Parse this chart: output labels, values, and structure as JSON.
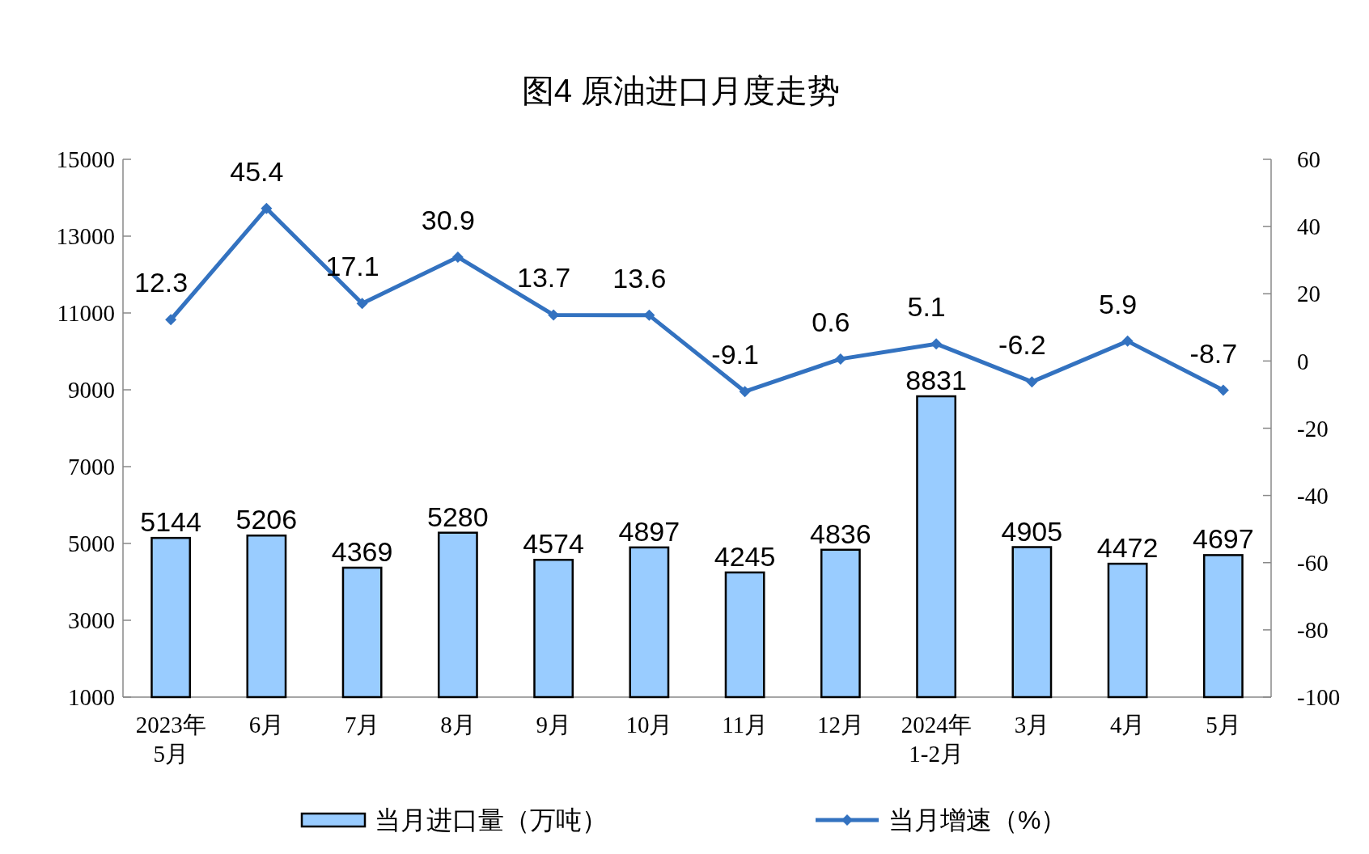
{
  "chart_data": {
    "type": "bar",
    "title": "图4  原油进口月度走势",
    "categories": [
      "2023年\n5月",
      "6月",
      "7月",
      "8月",
      "9月",
      "10月",
      "11月",
      "12月",
      "2024年\n1-2月",
      "3月",
      "4月",
      "5月"
    ],
    "series": [
      {
        "name": "当月进口量（万吨）",
        "color": "#99ccff",
        "values": [
          5144,
          5206,
          4369,
          5280,
          4574,
          4897,
          4245,
          4836,
          8831,
          4905,
          4472,
          4697
        ]
      },
      {
        "name": "当月增速（%）",
        "type": "line",
        "axis": "y2",
        "color": "#3372c0",
        "marker": "diamond",
        "values": [
          12.3,
          45.4,
          17.1,
          30.9,
          13.7,
          13.6,
          -9.1,
          0.6,
          5.1,
          -6.2,
          5.9,
          -8.7
        ]
      }
    ],
    "ylim": [
      1000,
      15000
    ],
    "yticks": [
      1000,
      3000,
      5000,
      7000,
      9000,
      11000,
      13000,
      15000
    ],
    "y2lim": [
      -100,
      60
    ],
    "y2ticks": [
      -100,
      -80,
      -60,
      -40,
      -20,
      0,
      20,
      40,
      60
    ],
    "data_labels": true,
    "legend": "bottom",
    "grid": false
  }
}
